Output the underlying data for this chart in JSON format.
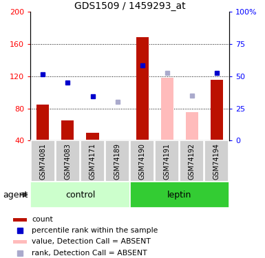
{
  "title": "GDS1509 / 1459293_at",
  "samples": [
    "GSM74081",
    "GSM74083",
    "GSM74171",
    "GSM74189",
    "GSM74190",
    "GSM74191",
    "GSM74192",
    "GSM74194"
  ],
  "bar_values": [
    85,
    65,
    50,
    null,
    168,
    null,
    null,
    115
  ],
  "bar_absent": [
    null,
    null,
    null,
    null,
    null,
    118,
    75,
    null
  ],
  "dot_present": [
    122,
    112,
    95,
    null,
    133,
    null,
    null,
    124
  ],
  "dot_absent": [
    null,
    null,
    null,
    88,
    null,
    124,
    96,
    null
  ],
  "ylim": [
    40,
    200
  ],
  "y2lim": [
    0,
    100
  ],
  "yticks": [
    40,
    80,
    120,
    160,
    200
  ],
  "y2ticks": [
    0,
    25,
    50,
    75,
    100
  ],
  "gridlines": [
    80,
    120,
    160
  ],
  "absent_bar_color": "#ffbbbb",
  "absent_dot_color": "#aaaacc",
  "present_bar_color": "#bb1100",
  "present_dot_color": "#0000cc",
  "control_bg": "#ccffcc",
  "leptin_bg": "#33cc33",
  "gray_box": "#d0d0d0",
  "legend_items": [
    {
      "label": "count",
      "color": "#bb1100",
      "type": "bar"
    },
    {
      "label": "percentile rank within the sample",
      "color": "#0000cc",
      "type": "dot"
    },
    {
      "label": "value, Detection Call = ABSENT",
      "color": "#ffbbbb",
      "type": "bar"
    },
    {
      "label": "rank, Detection Call = ABSENT",
      "color": "#aaaacc",
      "type": "dot"
    }
  ]
}
